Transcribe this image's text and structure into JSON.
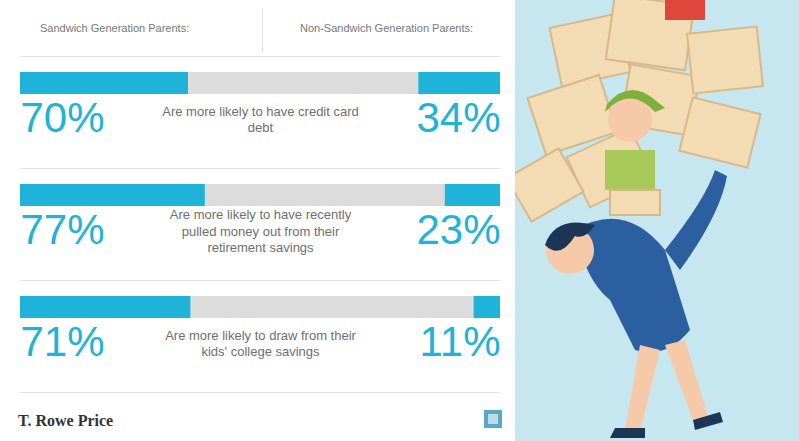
{
  "chart_data": {
    "type": "bar",
    "orientation": "horizontal",
    "categories": [
      "Are more likely to have credit card debt",
      "Are more likely to have recently pulled money out from their retirement savings",
      "Are more likely to draw from their kids' college savings"
    ],
    "series": [
      {
        "name": "Sandwich Generation Parents:",
        "color": "#1fb3d9",
        "values": [
          70,
          77,
          71
        ],
        "value_labels": [
          "70%",
          "77%",
          "71%"
        ]
      },
      {
        "name": "Non-Sandwich Generation Parents:",
        "color": "#1fb3d9",
        "values": [
          34,
          23,
          11
        ],
        "value_labels": [
          "34%",
          "23%",
          "11%"
        ]
      }
    ],
    "xlim": [
      0,
      100
    ],
    "tick_labels": false,
    "data_labels": true,
    "grid": false,
    "caption": "T. Rowe Price"
  }
}
